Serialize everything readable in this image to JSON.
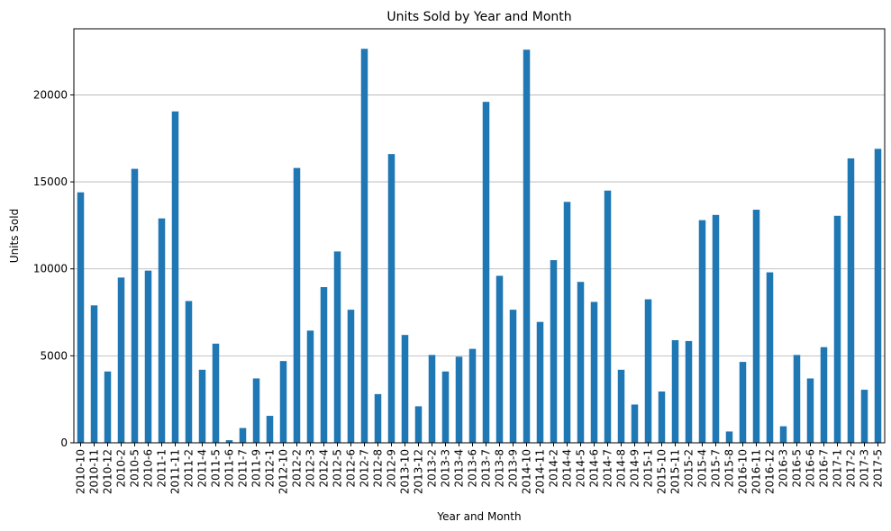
{
  "chart_data": {
    "type": "bar",
    "title": "Units Sold by Year and Month",
    "xlabel": "Year and Month",
    "ylabel": "Units Sold",
    "ylim": [
      0,
      23800
    ],
    "yticks": [
      0,
      5000,
      10000,
      15000,
      20000
    ],
    "grid": "horizontal",
    "bar_color": "#1f77b4",
    "categories": [
      "2010-10",
      "2010-11",
      "2010-12",
      "2010-2",
      "2010-5",
      "2010-6",
      "2011-1",
      "2011-11",
      "2011-2",
      "2011-4",
      "2011-5",
      "2011-6",
      "2011-7",
      "2011-9",
      "2012-1",
      "2012-10",
      "2012-2",
      "2012-3",
      "2012-4",
      "2012-5",
      "2012-6",
      "2012-7",
      "2012-8",
      "2012-9",
      "2013-10",
      "2013-12",
      "2013-2",
      "2013-3",
      "2013-4",
      "2013-6",
      "2013-7",
      "2013-8",
      "2013-9",
      "2014-10",
      "2014-11",
      "2014-2",
      "2014-4",
      "2014-5",
      "2014-6",
      "2014-7",
      "2014-8",
      "2014-9",
      "2015-1",
      "2015-10",
      "2015-11",
      "2015-2",
      "2015-4",
      "2015-7",
      "2015-8",
      "2016-10",
      "2016-11",
      "2016-12",
      "2016-3",
      "2016-5",
      "2016-6",
      "2016-7",
      "2017-1",
      "2017-2",
      "2017-3",
      "2017-5"
    ],
    "values": [
      14400,
      7900,
      4100,
      9500,
      15750,
      9900,
      12900,
      19050,
      8150,
      4200,
      5700,
      150,
      850,
      3700,
      1550,
      4700,
      15800,
      6450,
      8950,
      11000,
      7650,
      22650,
      2800,
      16600,
      6200,
      2100,
      5050,
      4100,
      4950,
      5400,
      19600,
      9600,
      7650,
      22600,
      6950,
      10500,
      13850,
      9250,
      8100,
      14500,
      4200,
      2200,
      8250,
      2950,
      5900,
      5850,
      12800,
      13100,
      650,
      4650,
      13400,
      9800,
      950,
      5050,
      3700,
      5500,
      13050,
      16350,
      3050,
      16900
    ]
  }
}
